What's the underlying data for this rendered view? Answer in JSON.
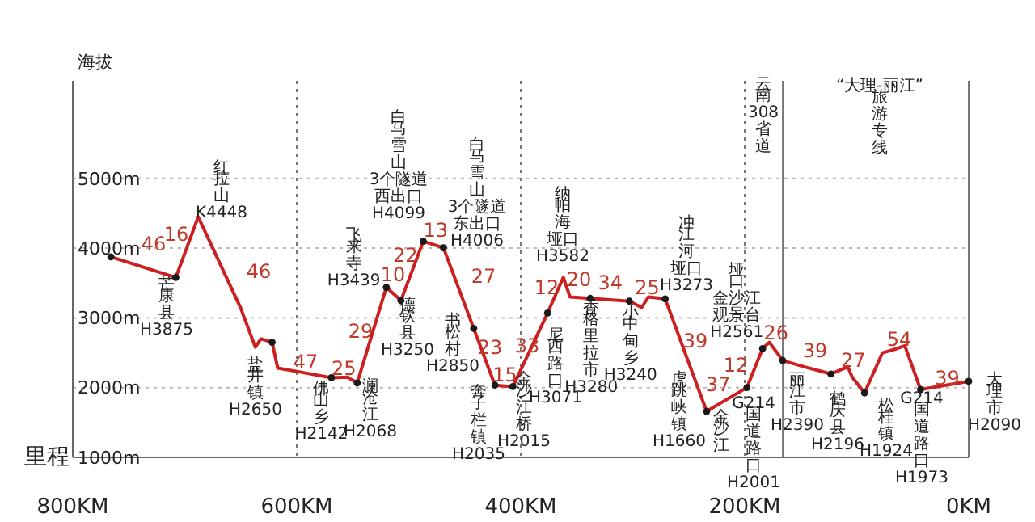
{
  "chart_data": {
    "type": "line",
    "xlabel": "里程",
    "ylabel": "海拔",
    "xlim": [
      800,
      0
    ],
    "ylim": [
      1000,
      6400
    ],
    "xticks": [
      {
        "value": 800,
        "label": "800KM"
      },
      {
        "value": 600,
        "label": "600KM"
      },
      {
        "value": 400,
        "label": "400KM"
      },
      {
        "value": 200,
        "label": "200KM"
      },
      {
        "value": 0,
        "label": "0KM"
      }
    ],
    "yticks": [
      {
        "value": 1000,
        "label": "1000m"
      },
      {
        "value": 2000,
        "label": "2000m"
      },
      {
        "value": 3000,
        "label": "3000m"
      },
      {
        "value": 4000,
        "label": "4000m"
      },
      {
        "value": 5000,
        "label": "5000m"
      }
    ],
    "grid": "y",
    "line_style": "solid",
    "series": [
      {
        "color": "#cc1f1f",
        "x": [
          766,
          708,
          688,
          650,
          637,
          632,
          622,
          617,
          599,
          569,
          555,
          546,
          520,
          507,
          487,
          469,
          442,
          423,
          407,
          376,
          362,
          356,
          338,
          303,
          292,
          286,
          271,
          234,
          198,
          184,
          178,
          166,
          147,
          123,
          108,
          104,
          93,
          77,
          66,
          57,
          43,
          0
        ],
        "values": [
          3875,
          3580,
          4448,
          3140,
          2580,
          2700,
          2650,
          2280,
          2230,
          2142,
          2150,
          2068,
          3439,
          3250,
          4099,
          4006,
          2850,
          2035,
          2015,
          3071,
          3582,
          3300,
          3280,
          3240,
          3150,
          3300,
          3273,
          1660,
          2001,
          2561,
          2650,
          2390,
          2300,
          2196,
          2300,
          2150,
          1924,
          2500,
          2550,
          2600,
          1973,
          2090
        ]
      },
      {
        "type": "scatter",
        "marker": "circle",
        "color": "#1a1a1a",
        "x": [
          766,
          708,
          622,
          569,
          546,
          520,
          507,
          487,
          469,
          442,
          423,
          407,
          376,
          338,
          303,
          271,
          234,
          198,
          184,
          166,
          123,
          93,
          43,
          0
        ],
        "values": [
          3875,
          3580,
          2650,
          2142,
          2068,
          3439,
          3250,
          4099,
          4006,
          2850,
          2035,
          2015,
          3071,
          3280,
          3240,
          3273,
          1660,
          2001,
          2561,
          2390,
          2196,
          1924,
          1973,
          2090
        ]
      }
    ],
    "ref_lines": [
      {
        "axis": "x",
        "value": 600,
        "line_style": "dotted",
        "color": "#777777"
      },
      {
        "axis": "x",
        "value": 400,
        "line_style": "dotted",
        "color": "#777777"
      },
      {
        "axis": "x",
        "value": 200,
        "line_style": "dotted",
        "color": "#777777"
      },
      {
        "axis": "x",
        "value": 166,
        "line_style": "solid",
        "color": "#777777"
      },
      {
        "axis": "x",
        "value": 0,
        "line_style": "solid",
        "color": "#777777"
      }
    ],
    "annotations": [
      "芒康县H3875",
      "红拉山K4448",
      "盐井镇H2650",
      "佛山乡H2142",
      "澜沧江H2068",
      "飞来寺H3439",
      "德钦县H3250",
      "白马雪山3个隧道西出口H4099",
      "白马雪山3个隧道东出口H4006",
      "书松村H2850",
      "奔子栏镇H2035",
      "金沙江桥H2015",
      "纳帕海垭口H3582",
      "尼西路口H3071",
      "香格里拉市H3280",
      "小中甸乡H3240",
      "冲江河垭口H3273",
      "虎跳峡镇H1660",
      "金沙江",
      "G214国道路口H2001",
      "垭口金沙江观景台H2561",
      "丽江市H2390",
      "鹤庆县H2196",
      "松桂镇H1924",
      "G214国道路口H1973",
      "大理市H2090",
      "云南308省道",
      "“大理-丽江”旅游专线",
      "46",
      "16",
      "46",
      "47",
      "25",
      "29",
      "10",
      "22",
      "13",
      "27",
      "23",
      "15",
      "33",
      "12",
      "20",
      "34",
      "25",
      "39",
      "37",
      "12",
      "26",
      "39",
      "27",
      "54",
      "39"
    ]
  }
}
